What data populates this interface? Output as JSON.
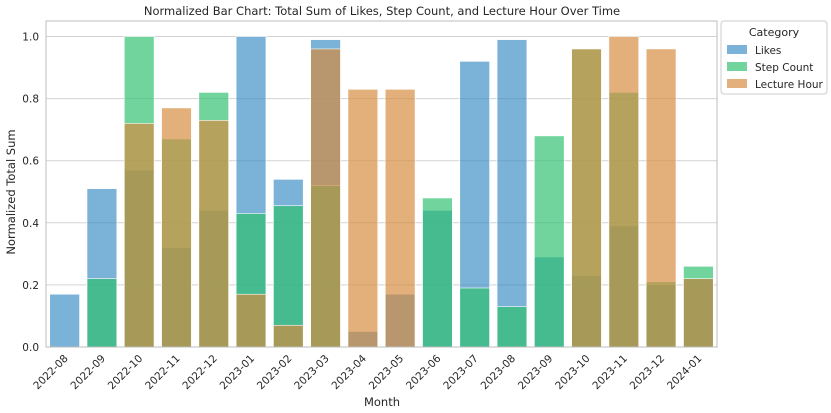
{
  "chart_data": {
    "type": "bar",
    "title": "Normalized Bar Chart: Total Sum of Likes, Step Count, and Lecture Hour Over Time",
    "xlabel": "Month",
    "ylabel": "Normalized Total Sum",
    "ylim": [
      0,
      1.05
    ],
    "yticks": [
      "0.0",
      "0.2",
      "0.4",
      "0.6",
      "0.8",
      "1.0"
    ],
    "grid": true,
    "legend": {
      "title": "Category",
      "placement": "outside-top-right"
    },
    "categories": [
      "2022-08",
      "2022-09",
      "2022-10",
      "2022-11",
      "2022-12",
      "2023-01",
      "2023-02",
      "2023-03",
      "2023-04",
      "2023-05",
      "2023-06",
      "2023-07",
      "2023-08",
      "2023-09",
      "2023-10",
      "2023-11",
      "2023-12",
      "2024-01"
    ],
    "series": [
      {
        "name": "Likes",
        "color": "#3C8DC4",
        "values": [
          0.17,
          0.51,
          0.57,
          0.32,
          0.44,
          1.0,
          0.54,
          0.99,
          0.05,
          0.17,
          0.44,
          0.92,
          0.99,
          0.29,
          0.23,
          0.39,
          0.2,
          0.22
        ]
      },
      {
        "name": "Step Count",
        "color": "#2EBF6F",
        "values": [
          0.0,
          0.22,
          1.0,
          0.67,
          0.82,
          0.43,
          0.455,
          0.52,
          0.0,
          0.0,
          0.48,
          0.19,
          0.13,
          0.68,
          0.96,
          0.82,
          0.21,
          0.26
        ]
      },
      {
        "name": "Lecture Hour",
        "color": "#D58B3E",
        "values": [
          0.0,
          0.0,
          0.72,
          0.77,
          0.73,
          0.17,
          0.07,
          0.96,
          0.83,
          0.83,
          0.0,
          0.0,
          0.0,
          0.0,
          0.96,
          1.0,
          0.96,
          0.22
        ]
      }
    ]
  }
}
